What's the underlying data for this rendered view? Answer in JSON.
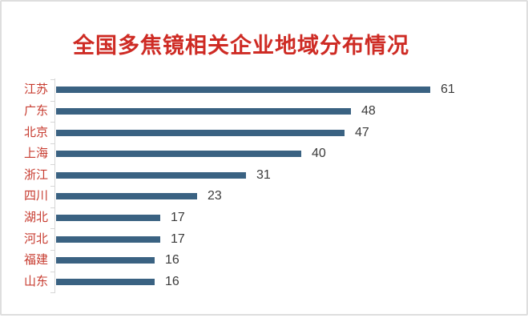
{
  "title": "全国多焦镜相关企业地域分布情况",
  "colors": {
    "title": "#ce2b24",
    "category_label": "#c73b2f",
    "value_label": "#3b3b3b",
    "bar": "#3a6282",
    "axis": "#d6d6d6",
    "card_border": "#dedede",
    "background": "#ffffff"
  },
  "chart_data": {
    "type": "bar",
    "orientation": "horizontal",
    "title": "全国多焦镜相关企业地域分布情况",
    "categories": [
      "江苏",
      "广东",
      "北京",
      "上海",
      "浙江",
      "四川",
      "湖北",
      "河北",
      "福建",
      "山东"
    ],
    "values": [
      61,
      48,
      47,
      40,
      31,
      23,
      17,
      17,
      16,
      16
    ],
    "xlabel": "",
    "ylabel": "",
    "xlim": [
      0,
      65
    ],
    "grid": false,
    "legend": "none",
    "data_labels": true,
    "sort_order": "descending"
  }
}
